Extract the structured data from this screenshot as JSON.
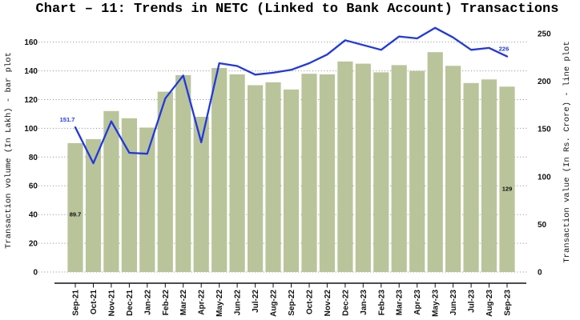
{
  "chart_data": {
    "type": "bar+line",
    "title": "Chart – 11: Trends in NETC (Linked to Bank Account) Transactions",
    "categories": [
      "Sep-21",
      "Oct-21",
      "Nov-21",
      "Dec-21",
      "Jan-22",
      "Feb-22",
      "Mar-22",
      "Apr-22",
      "May-22",
      "Jun-22",
      "Jul-22",
      "Aug-22",
      "Sep-22",
      "Oct-22",
      "Nov-22",
      "Dec-22",
      "Jan-23",
      "Feb-23",
      "Mar-23",
      "Apr-23",
      "May-23",
      "Jun-23",
      "Jul-23",
      "Aug-23",
      "Sep-23"
    ],
    "series": [
      {
        "name": "Transaction volume",
        "unit": "In Lakh",
        "type": "bar",
        "axis": "left",
        "color": "#b9c49a",
        "values": [
          89.7,
          92.5,
          112,
          107,
          100.5,
          125.5,
          137,
          108,
          142,
          137.5,
          130,
          132,
          127,
          138,
          137.5,
          146.5,
          145,
          139,
          144,
          140,
          153,
          143.5,
          131.5,
          134,
          129
        ]
      },
      {
        "name": "Transaction value",
        "unit": "In Rs. Crore",
        "type": "line",
        "axis": "right",
        "color": "#2138e0",
        "values": [
          151.7,
          114,
          158,
          125,
          124,
          182,
          206,
          136,
          219,
          216,
          207,
          209,
          212,
          219,
          228,
          243,
          238,
          233,
          247,
          245,
          256,
          246,
          233,
          235,
          226
        ]
      }
    ],
    "left_axis": {
      "label": "Transaction volume (In Lakh) - bar plot",
      "ticks": [
        0,
        20,
        40,
        60,
        80,
        100,
        120,
        140,
        160
      ],
      "range": [
        0,
        172
      ]
    },
    "right_axis": {
      "label": "Transaction value (In Rs. Crore) - line plot",
      "ticks": [
        0,
        50,
        100,
        150,
        200,
        250
      ],
      "range": [
        0,
        265
      ]
    },
    "grid": {
      "horizontal": "dotted",
      "color": "#8a8a8a"
    },
    "annotations": [
      {
        "text": "151.7",
        "category": "Sep-21",
        "series": "line",
        "color": "#2138e0"
      },
      {
        "text": "89.7",
        "category": "Sep-21",
        "series": "bar",
        "color": "#111111"
      },
      {
        "text": "226",
        "category": "Sep-23",
        "series": "line",
        "color": "#2138e0"
      },
      {
        "text": "129",
        "category": "Sep-23",
        "series": "bar",
        "color": "#111111"
      }
    ]
  }
}
